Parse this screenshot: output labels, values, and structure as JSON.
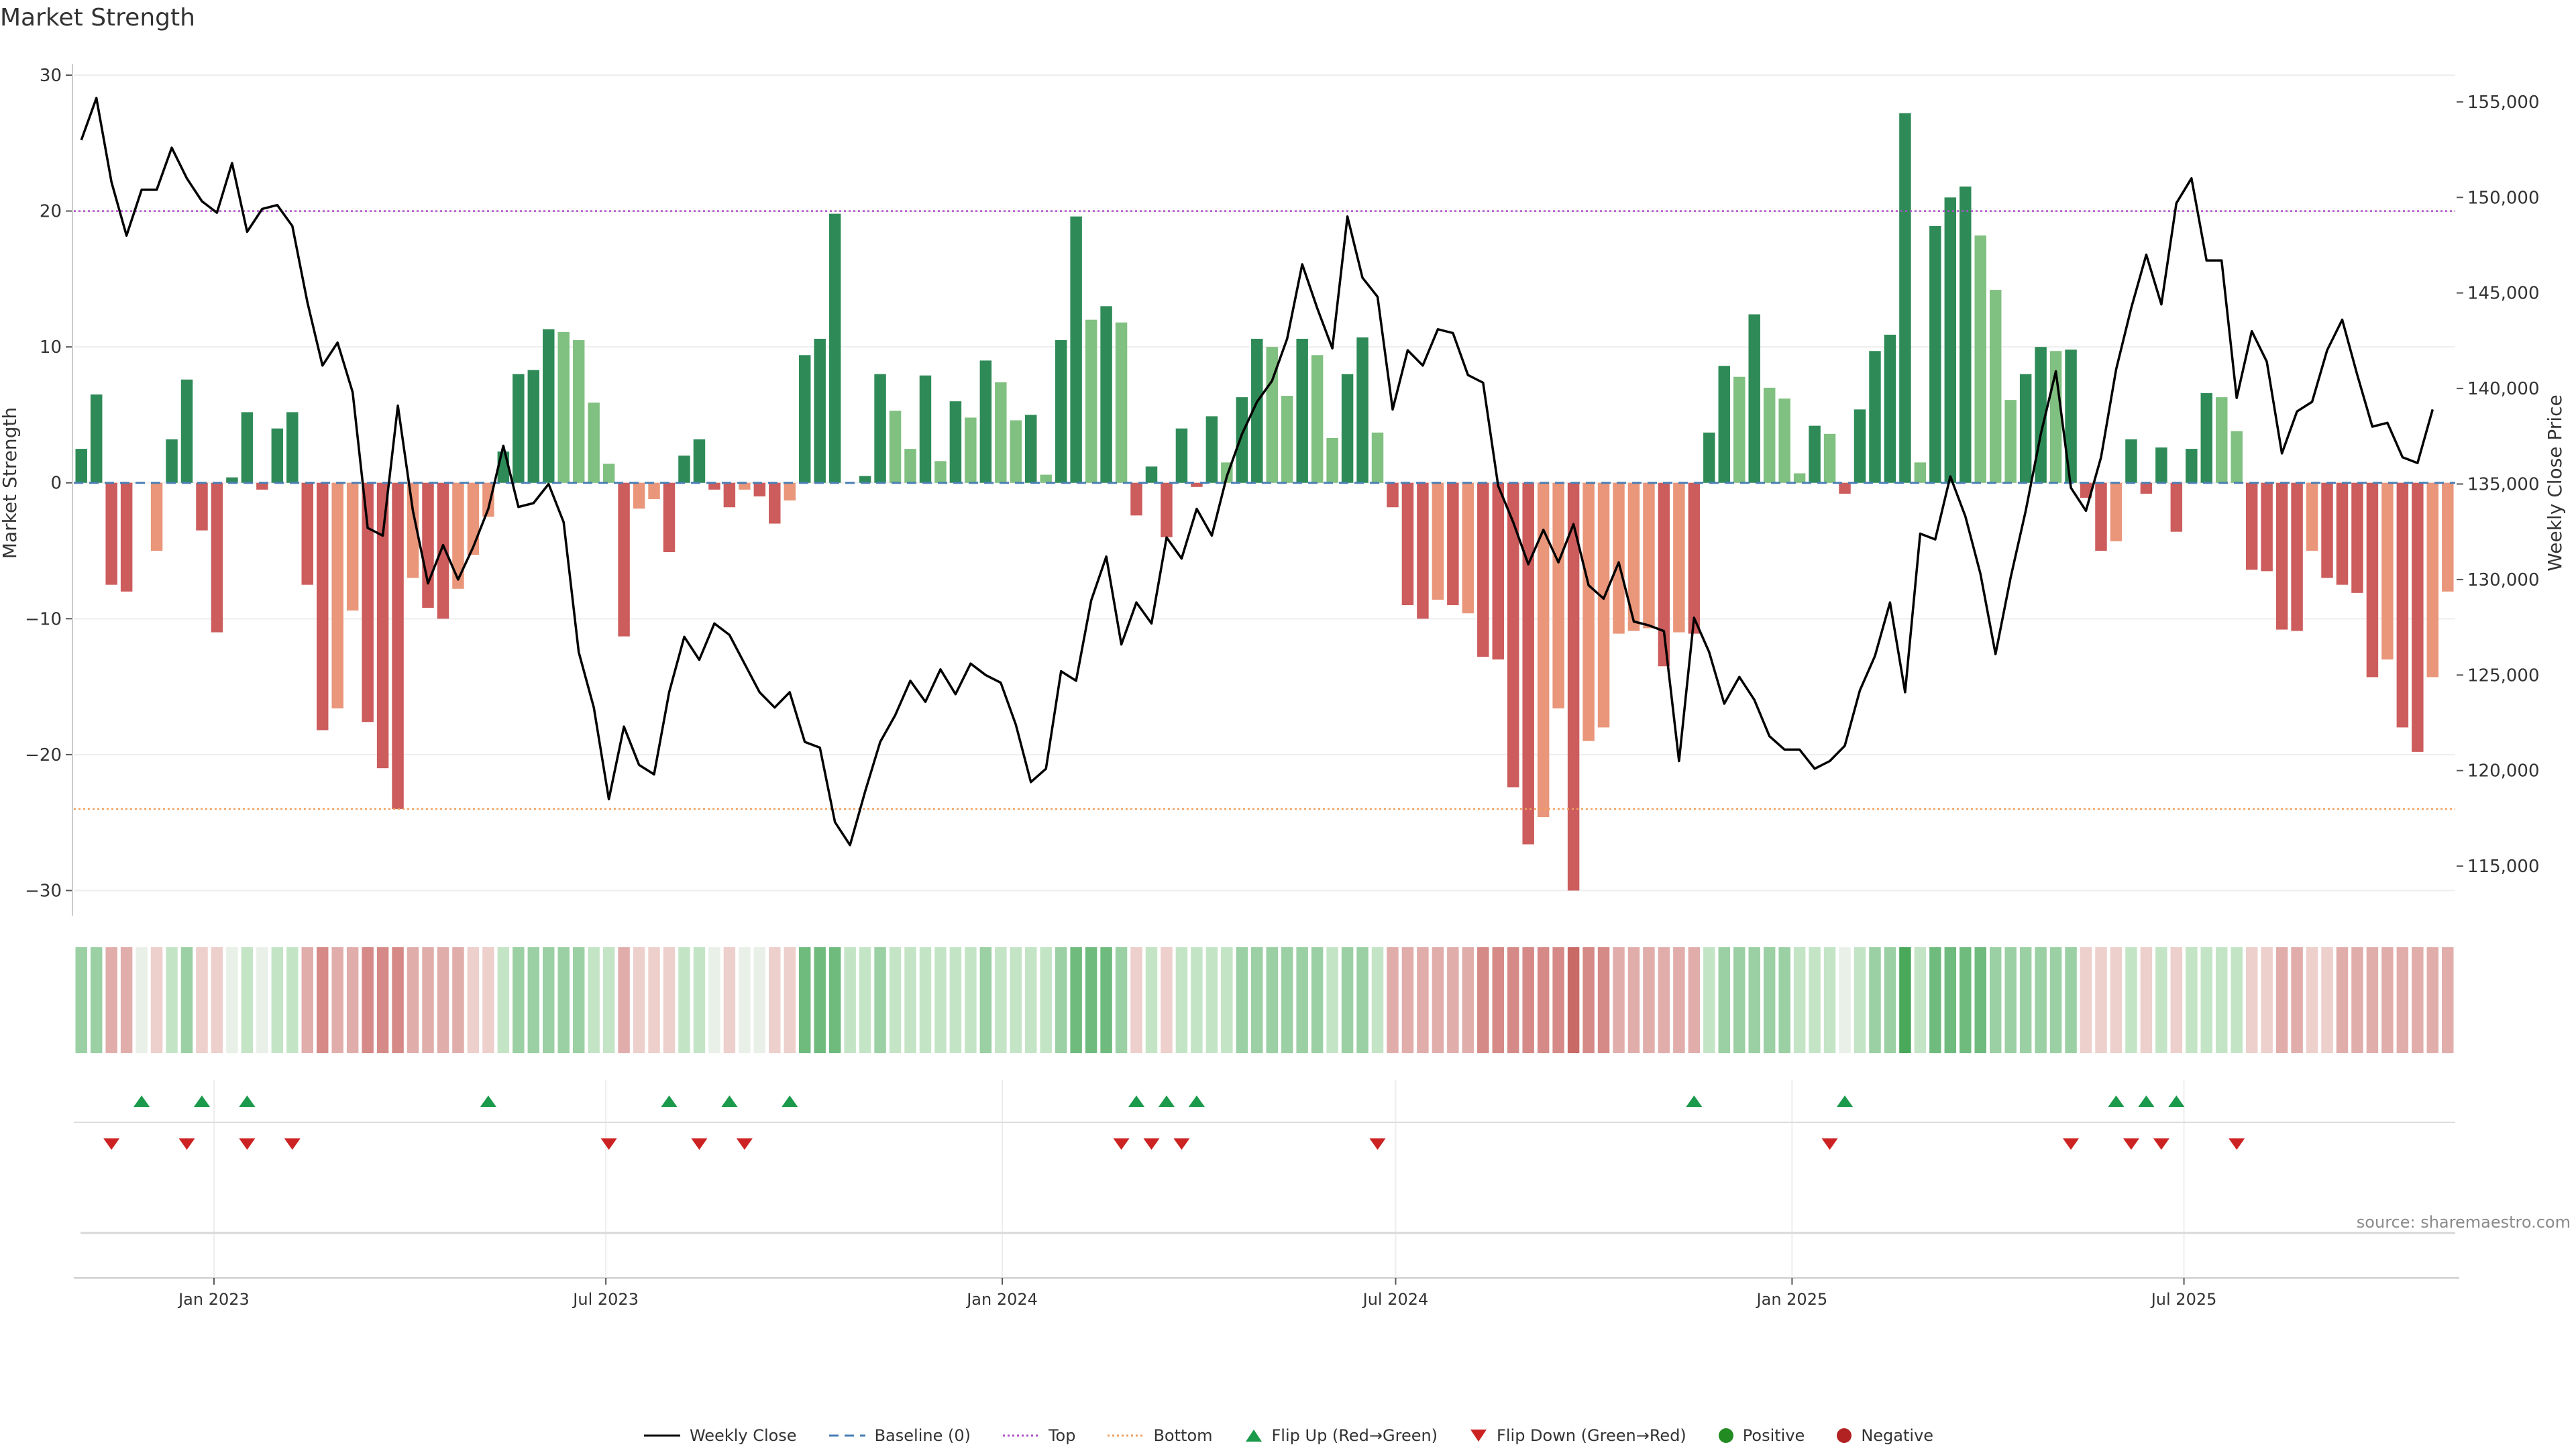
{
  "colors": {
    "pos_strong": "#2e8b57",
    "pos_weak": "#80c080",
    "neg_strong": "#cd5c5c",
    "neg_weak": "#e9967a",
    "line": "#000000",
    "baseline": "#4a7fb5",
    "top": "#b050c8",
    "bottom": "#f0a060",
    "flip_up": "#1a9a4a",
    "flip_down": "#cc2222",
    "positive": "#228b22",
    "negative": "#b22222"
  },
  "chart_data": {
    "type": "bar",
    "title": "Market Strength",
    "source": "source: sharemaestro.com",
    "ylabel_left": "Market Strength",
    "ylabel_right": "Weekly Close Price",
    "ylim_left": [
      -32,
      30
    ],
    "yticks_left": [
      30,
      20,
      10,
      0,
      -10,
      -20,
      -30
    ],
    "ytick_labels_left": [
      "30",
      "20",
      "10",
      "0",
      "−10",
      "−20",
      "−30"
    ],
    "ylim_right": [
      112300,
      156400
    ],
    "yticks_right": [
      155000,
      150000,
      145000,
      140000,
      135000,
      130000,
      125000,
      120000,
      115000
    ],
    "ytick_labels_right": [
      "155,000",
      "150,000",
      "145,000",
      "140,000",
      "135,000",
      "130,000",
      "125,000",
      "120,000",
      "115,000"
    ],
    "top_level": 20,
    "bottom_level": -24,
    "x_ticks": [
      {
        "label": "Jan 2023",
        "week": 9.3
      },
      {
        "label": "Jul 2023",
        "week": 35.3
      },
      {
        "label": "Jan 2024",
        "week": 61.6
      },
      {
        "label": "Jul 2024",
        "week": 87.7
      },
      {
        "label": "Jan 2025",
        "week": 114
      },
      {
        "label": "Jul 2025",
        "week": 140
      }
    ],
    "weeks": 158,
    "strength": [
      2.5,
      6.5,
      -7.5,
      -8,
      0,
      -5,
      3.2,
      7.6,
      -3.5,
      -11,
      0.4,
      5.2,
      -0.5,
      4,
      5.2,
      -7.5,
      -18.2,
      -16.6,
      -9.4,
      -17.6,
      -21,
      -24,
      -7,
      -9.2,
      -10,
      -7.8,
      -5.3,
      -2.5,
      2.3,
      8,
      8.3,
      11.3,
      11.1,
      10.5,
      5.9,
      1.4,
      -11.3,
      -1.9,
      -1.2,
      -5.1,
      2,
      3.2,
      -0.5,
      -1.8,
      -0.5,
      -1,
      -3,
      -1.3,
      9.4,
      10.6,
      19.8,
      0,
      0.5,
      8,
      5.3,
      2.5,
      7.9,
      1.6,
      6,
      4.8,
      9,
      7.4,
      4.6,
      5,
      0.6,
      10.5,
      19.6,
      12,
      13,
      11.8,
      -2.4,
      1.2,
      -4,
      4,
      -0.3,
      4.9,
      1.5,
      6.3,
      10.6,
      10,
      6.4,
      10.6,
      9.4,
      3.3,
      8,
      10.7,
      3.7,
      -1.8,
      -9,
      -10,
      -8.6,
      -9,
      -9.6,
      -12.8,
      -13,
      -22.4,
      -26.6,
      -24.6,
      -16.6,
      -30,
      -19,
      -18,
      -11.1,
      -10.9,
      -10.7,
      -13.5,
      -11,
      -11.1,
      3.7,
      8.6,
      7.8,
      12.4,
      7,
      6.2,
      0.7,
      4.2,
      3.6,
      -0.8,
      5.4,
      9.7,
      10.9,
      27.2,
      1.5,
      18.9,
      21,
      21.8,
      18.2,
      14.2,
      6.1,
      8,
      10,
      9.7,
      9.8,
      -1.1,
      -5,
      -4.3,
      3.2,
      -0.8,
      2.6,
      -3.6,
      2.5,
      6.6,
      6.3,
      3.8,
      -6.4,
      -6.5,
      -10.8,
      -10.9,
      -5,
      -7,
      -7.5,
      -8.1,
      -14.3,
      -13,
      -18,
      -19.8,
      -14.3,
      -8
    ],
    "strength_class": [
      "+s",
      "+s",
      "-s",
      "-s",
      "0",
      "-w",
      "+s",
      "+s",
      "-s",
      "-s",
      "+s",
      "+s",
      "-s",
      "+s",
      "+s",
      "-s",
      "-s",
      "-w",
      "-w",
      "-s",
      "-s",
      "-s",
      "-w",
      "-s",
      "-s",
      "-w",
      "-w",
      "-w",
      "+s",
      "+s",
      "+s",
      "+s",
      "+w",
      "+w",
      "+w",
      "+w",
      "-s",
      "-w",
      "-w",
      "-s",
      "+s",
      "+s",
      "-s",
      "-s",
      "-w",
      "-s",
      "-s",
      "-w",
      "+s",
      "+s",
      "+s",
      "0",
      "+s",
      "+s",
      "+w",
      "+w",
      "+s",
      "+w",
      "+s",
      "+w",
      "+s",
      "+w",
      "+w",
      "+s",
      "+w",
      "+s",
      "+s",
      "+w",
      "+s",
      "+w",
      "-s",
      "+s",
      "-s",
      "+s",
      "-s",
      "+s",
      "+w",
      "+s",
      "+s",
      "+w",
      "+w",
      "+s",
      "+w",
      "+w",
      "+s",
      "+s",
      "+w",
      "-s",
      "-s",
      "-s",
      "-w",
      "-s",
      "-w",
      "-s",
      "-s",
      "-s",
      "-s",
      "-w",
      "-w",
      "-s",
      "-w",
      "-w",
      "-w",
      "-w",
      "-w",
      "-s",
      "-w",
      "-s",
      "+s",
      "+s",
      "+w",
      "+s",
      "+w",
      "+w",
      "+w",
      "+s",
      "+w",
      "-s",
      "+s",
      "+s",
      "+s",
      "+s",
      "+w",
      "+s",
      "+s",
      "+s",
      "+w",
      "+w",
      "+w",
      "+s",
      "+s",
      "+w",
      "+s",
      "-s",
      "-s",
      "-w",
      "+s",
      "-s",
      "+s",
      "-s",
      "+s",
      "+s",
      "+w",
      "+w",
      "-s",
      "-s",
      "-s",
      "-s",
      "-w",
      "-s",
      "-s",
      "-s",
      "-s",
      "-w",
      "-s",
      "-s",
      "-w",
      "-w"
    ],
    "weekly_close": [
      153000,
      155200,
      150800,
      148000,
      150400,
      150400,
      152600,
      151000,
      149800,
      149200,
      151800,
      148200,
      149400,
      149600,
      148500,
      144500,
      141200,
      142400,
      139800,
      132700,
      132300,
      139100,
      133600,
      129800,
      131800,
      130000,
      131700,
      133700,
      137000,
      133800,
      134000,
      135000,
      133000,
      126200,
      123300,
      118500,
      122300,
      120300,
      119800,
      124100,
      127000,
      125800,
      127700,
      127100,
      125600,
      124100,
      123300,
      124100,
      121500,
      121200,
      117300,
      116100,
      118900,
      121500,
      122900,
      124700,
      123600,
      125300,
      124000,
      125600,
      125000,
      124600,
      122400,
      119400,
      120100,
      125200,
      124700,
      128900,
      131200,
      126600,
      128800,
      127700,
      132200,
      131100,
      133700,
      132300,
      135400,
      137600,
      139300,
      140400,
      142600,
      146500,
      144200,
      142100,
      149000,
      145800,
      144800,
      138900,
      142000,
      141200,
      143100,
      142900,
      140700,
      140300,
      134900,
      133000,
      130800,
      132600,
      130900,
      132900,
      129700,
      129000,
      130900,
      127800,
      127600,
      127300,
      120500,
      128000,
      126200,
      123500,
      124900,
      123700,
      121800,
      121100,
      121100,
      120100,
      120500,
      121300,
      124200,
      126000,
      128800,
      124100,
      132400,
      132100,
      135400,
      133300,
      130300,
      126100,
      130100,
      133600,
      137600,
      140900,
      134800,
      133600,
      136400,
      141000,
      144200,
      147000,
      144400,
      149700,
      151000,
      146700,
      146700,
      139500,
      143000,
      141400,
      136600,
      138800,
      139300,
      142000,
      143600,
      140700,
      138000,
      138200,
      136400,
      136100,
      138900
    ],
    "heat_class": [
      "+2",
      "+2",
      "-2",
      "-2",
      "0",
      "-1",
      "+1",
      "+2",
      "-1",
      "-1",
      "0",
      "+1",
      "0",
      "+1",
      "+1",
      "-2",
      "-3",
      "-2",
      "-2",
      "-3",
      "-3",
      "-3",
      "-2",
      "-2",
      "-2",
      "-2",
      "-1",
      "-1",
      "+1",
      "+2",
      "+2",
      "+2",
      "+2",
      "+2",
      "+1",
      "+1",
      "-2",
      "-1",
      "-1",
      "-1",
      "+1",
      "+1",
      "0",
      "-1",
      "0",
      "0",
      "-1",
      "-1",
      "+3",
      "+3",
      "+3",
      "+1",
      "+1",
      "+2",
      "+1",
      "+1",
      "+1",
      "+1",
      "+1",
      "+1",
      "+2",
      "+1",
      "+1",
      "+1",
      "+1",
      "+2",
      "+3",
      "+3",
      "+3",
      "+2",
      "-1",
      "+1",
      "-1",
      "+1",
      "+1",
      "+1",
      "+1",
      "+2",
      "+2",
      "+2",
      "+2",
      "+2",
      "+2",
      "+1",
      "+2",
      "+2",
      "+1",
      "-2",
      "-2",
      "-2",
      "-2",
      "-2",
      "-2",
      "-3",
      "-3",
      "-3",
      "-3",
      "-3",
      "-3",
      "-4",
      "-3",
      "-3",
      "-2",
      "-2",
      "-2",
      "-2",
      "-2",
      "-2",
      "+1",
      "+2",
      "+2",
      "+2",
      "+2",
      "+2",
      "+1",
      "+1",
      "+1",
      "0",
      "+1",
      "+2",
      "+2",
      "+4",
      "+1",
      "+3",
      "+3",
      "+3",
      "+3",
      "+2",
      "+2",
      "+2",
      "+2",
      "+2",
      "+2",
      "-1",
      "-1",
      "-1",
      "+1",
      "-1",
      "+1",
      "-1",
      "+1",
      "+1",
      "+1",
      "+1",
      "-1",
      "-1",
      "-2",
      "-2",
      "-1",
      "-1",
      "-2",
      "-2",
      "-2",
      "-2",
      "-2",
      "-2",
      "-2",
      "-2"
    ],
    "flip_up_weeks": [
      4.5,
      8.5,
      11.5,
      27.5,
      39.5,
      43.5,
      47.5,
      70.5,
      72.5,
      74.5,
      107.5,
      117.5,
      135.5,
      137.5,
      139.5
    ],
    "flip_down_weeks": [
      2.5,
      7.5,
      11.5,
      14.5,
      35.5,
      41.5,
      44.5,
      69.5,
      71.5,
      73.5,
      86.5,
      116.5,
      132.5,
      136.5,
      138.5,
      143.5
    ]
  },
  "legend": [
    {
      "label": "Weekly Close",
      "symbol": "solid-line"
    },
    {
      "label": "Baseline (0)",
      "symbol": "dashed-line"
    },
    {
      "label": "Top",
      "symbol": "dotted-line-purple"
    },
    {
      "label": "Bottom",
      "symbol": "dotted-line-orange"
    },
    {
      "label": "Flip Up (Red→Green)",
      "symbol": "triangle-up-icon"
    },
    {
      "label": "Flip Down (Green→Red)",
      "symbol": "triangle-down-icon"
    },
    {
      "label": "Positive",
      "symbol": "circle-green-icon"
    },
    {
      "label": "Negative",
      "symbol": "circle-red-icon"
    }
  ]
}
